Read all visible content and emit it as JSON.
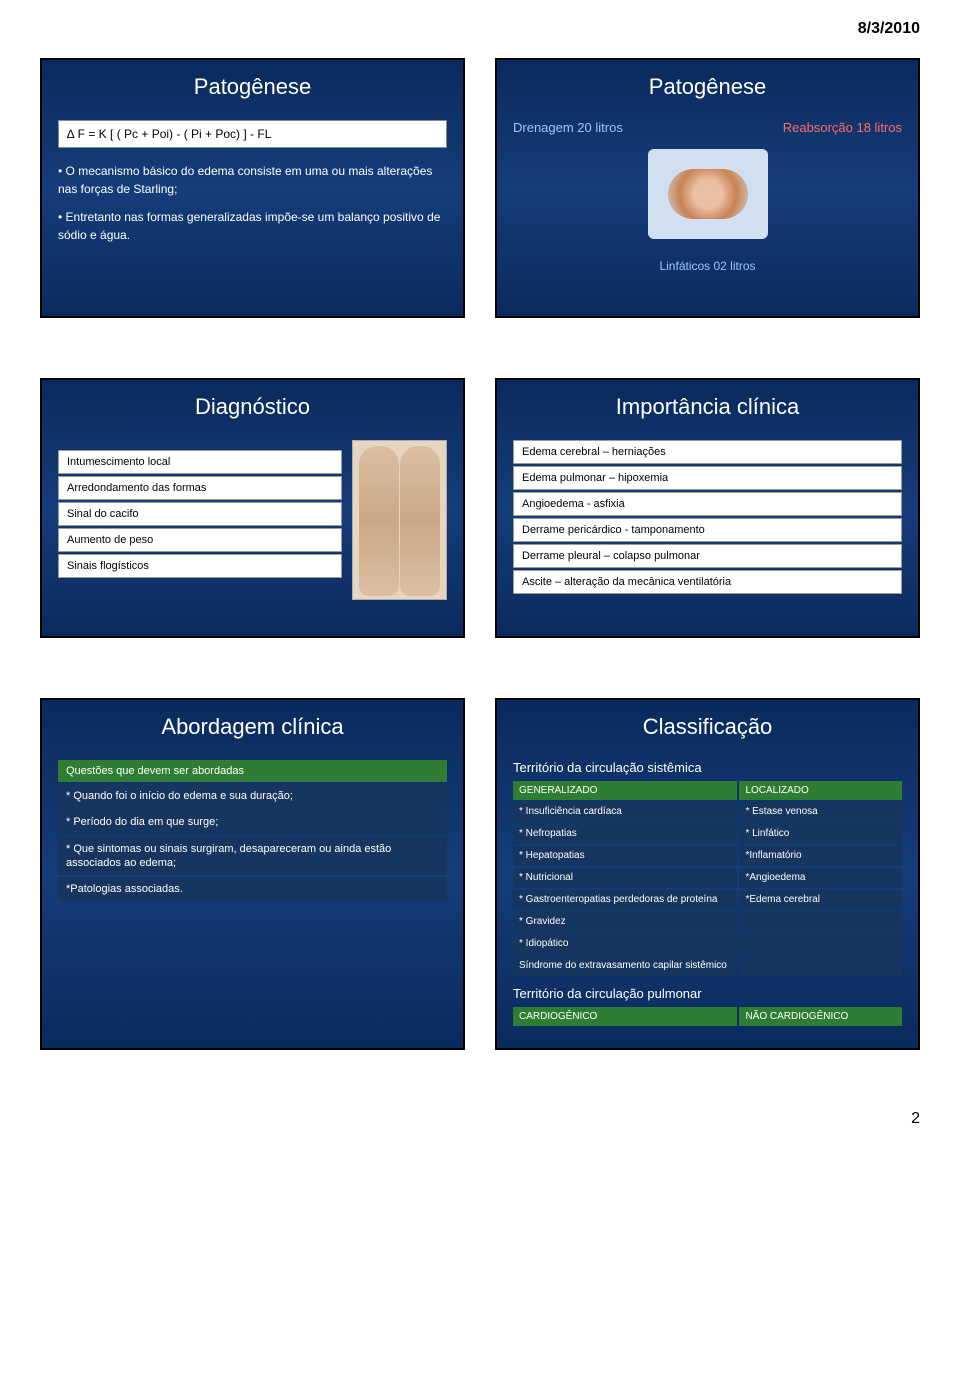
{
  "date": "8/3/2010",
  "page_number": "2",
  "slide1": {
    "title": "Patogênese",
    "formula": "∆ F = K [ ( Pc + Poi) - ( Pi + Poc) ] - FL",
    "bullets": [
      "• O mecanismo básico do edema consiste em uma ou mais alterações nas forças de Starling;",
      "• Entretanto nas formas generalizadas impõe-se um balanço positivo de sódio e água."
    ]
  },
  "slide2": {
    "title": "Patogênese",
    "drainage": "Drenagem 20 litros",
    "reabsorption": "Reabsorção 18 litros",
    "lymph": "Linfáticos 02 litros"
  },
  "slide3": {
    "title": "Diagnóstico",
    "rows": [
      "Intumescimento local",
      "Arredondamento das formas",
      "Sinal do cacifo",
      "Aumento de peso",
      "Sinais flogísticos"
    ]
  },
  "slide4": {
    "title": "Importância clínica",
    "rows": [
      "Edema cerebral – herniações",
      "Edema pulmonar – hipoxemia",
      "Angioedema - asfixia",
      "Derrame pericárdico - tamponamento",
      "Derrame pleural – colapso pulmonar",
      "Ascite – alteração da mecânica ventilatória"
    ]
  },
  "slide5": {
    "title": "Abordagem clínica",
    "header": "Questões que devem ser abordadas",
    "rows": [
      "* Quando foi o início do edema e sua duração;",
      "* Período do dia em que surge;",
      "* Que sintomas ou sinais surgiram, desapareceram ou ainda estão associados ao edema;",
      "*Patologias associadas."
    ]
  },
  "slide6": {
    "title": "Classificação",
    "subtitle1": "Território da circulação sistêmica",
    "h1": "GENERALIZADO",
    "h2": "LOCALIZADO",
    "table1": [
      [
        "* Insuficiência cardíaca",
        "* Estase venosa"
      ],
      [
        "* Nefropatias",
        "* Linfático"
      ],
      [
        "* Hepatopatias",
        "*Inflamatório"
      ],
      [
        "* Nutricional",
        "*Angioedema"
      ],
      [
        "* Gastroenteropatias perdedoras de proteína",
        "*Edema cerebral"
      ],
      [
        "* Gravidez",
        ""
      ],
      [
        "* Idiopático",
        ""
      ],
      [
        "Síndrome do extravasamento capilar sistêmico",
        ""
      ]
    ],
    "subtitle2": "Território da circulação pulmonar",
    "h3": "CARDIOGÊNICO",
    "h4": "NÃO CARDIOGÊNICO"
  }
}
